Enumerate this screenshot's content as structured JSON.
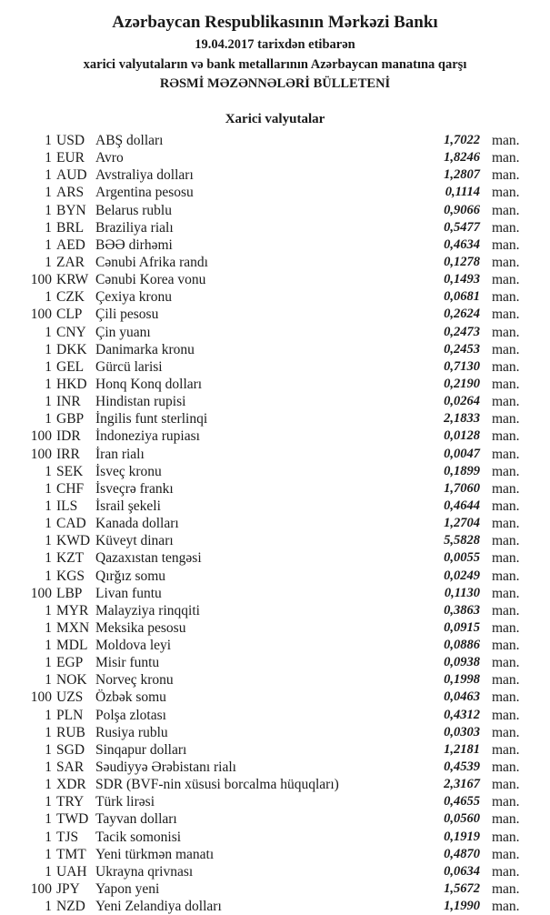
{
  "header": {
    "title": "Azərbaycan Respublikasının Mərkəzi Bankı",
    "date_line": "19.04.2017 tarixdən etibarən",
    "subtitle": "xarici valyutaların və bank metallarının Azərbaycan manatına qarşı",
    "bulletin": "RƏSMİ MƏZƏNNƏLƏRİ BÜLLETENİ"
  },
  "section": {
    "title": "Xarici valyutalar",
    "unit_label": "man.",
    "rows": [
      {
        "units": "1",
        "code": "USD",
        "name": "ABŞ dolları",
        "rate": "1,7022"
      },
      {
        "units": "1",
        "code": "EUR",
        "name": "Avro",
        "rate": "1,8246"
      },
      {
        "units": "1",
        "code": "AUD",
        "name": "Avstraliya dolları",
        "rate": "1,2807"
      },
      {
        "units": "1",
        "code": "ARS",
        "name": "Argentina pesosu",
        "rate": "0,1114"
      },
      {
        "units": "1",
        "code": "BYN",
        "name": "Belarus rublu",
        "rate": "0,9066"
      },
      {
        "units": "1",
        "code": "BRL",
        "name": "Braziliya rialı",
        "rate": "0,5477"
      },
      {
        "units": "1",
        "code": "AED",
        "name": "BƏƏ dirhəmi",
        "rate": "0,4634"
      },
      {
        "units": "1",
        "code": "ZAR",
        "name": "Cənubi Afrika randı",
        "rate": "0,1278"
      },
      {
        "units": "100",
        "code": "KRW",
        "name": "Cənubi Korea vonu",
        "rate": "0,1493"
      },
      {
        "units": "1",
        "code": "CZK",
        "name": "Çexiya kronu",
        "rate": "0,0681"
      },
      {
        "units": "100",
        "code": "CLP",
        "name": "Çili pesosu",
        "rate": "0,2624"
      },
      {
        "units": "1",
        "code": "CNY",
        "name": "Çin yuanı",
        "rate": "0,2473"
      },
      {
        "units": "1",
        "code": "DKK",
        "name": "Danimarka kronu",
        "rate": "0,2453"
      },
      {
        "units": "1",
        "code": "GEL",
        "name": "Gürcü larisi",
        "rate": "0,7130"
      },
      {
        "units": "1",
        "code": "HKD",
        "name": "Honq Konq dolları",
        "rate": "0,2190"
      },
      {
        "units": "1",
        "code": "INR",
        "name": "Hindistan rupisi",
        "rate": "0,0264"
      },
      {
        "units": "1",
        "code": "GBP",
        "name": "İngilis funt sterlinqi",
        "rate": "2,1833"
      },
      {
        "units": "100",
        "code": "IDR",
        "name": "İndoneziya rupiası",
        "rate": "0,0128"
      },
      {
        "units": "100",
        "code": "IRR",
        "name": "İran rialı",
        "rate": "0,0047"
      },
      {
        "units": "1",
        "code": "SEK",
        "name": "İsveç kronu",
        "rate": "0,1899"
      },
      {
        "units": "1",
        "code": "CHF",
        "name": "İsveçrə frankı",
        "rate": "1,7060"
      },
      {
        "units": "1",
        "code": "ILS",
        "name": "İsrail şekeli",
        "rate": "0,4644"
      },
      {
        "units": "1",
        "code": "CAD",
        "name": "Kanada dolları",
        "rate": "1,2704"
      },
      {
        "units": "1",
        "code": "KWD",
        "name": "Küveyt dinarı",
        "rate": "5,5828"
      },
      {
        "units": "1",
        "code": "KZT",
        "name": "Qazaxıstan tengəsi",
        "rate": "0,0055"
      },
      {
        "units": "1",
        "code": "KGS",
        "name": "Qırğız somu",
        "rate": "0,0249"
      },
      {
        "units": "100",
        "code": "LBP",
        "name": "Livan funtu",
        "rate": "0,1130"
      },
      {
        "units": "1",
        "code": "MYR",
        "name": "Malayziya rinqqiti",
        "rate": "0,3863"
      },
      {
        "units": "1",
        "code": "MXN",
        "name": "Meksika pesosu",
        "rate": "0,0915"
      },
      {
        "units": "1",
        "code": "MDL",
        "name": "Moldova leyi",
        "rate": "0,0886"
      },
      {
        "units": "1",
        "code": "EGP",
        "name": "Misir funtu",
        "rate": "0,0938"
      },
      {
        "units": "1",
        "code": "NOK",
        "name": "Norveç kronu",
        "rate": "0,1998"
      },
      {
        "units": "100",
        "code": "UZS",
        "name": "Özbək somu",
        "rate": "0,0463"
      },
      {
        "units": "1",
        "code": "PLN",
        "name": "Polşa zlotası",
        "rate": "0,4312"
      },
      {
        "units": "1",
        "code": "RUB",
        "name": "Rusiya rublu",
        "rate": "0,0303"
      },
      {
        "units": "1",
        "code": "SGD",
        "name": "Sinqapur dolları",
        "rate": "1,2181"
      },
      {
        "units": "1",
        "code": "SAR",
        "name": "Səudiyyə Ərəbistanı rialı",
        "rate": "0,4539"
      },
      {
        "units": "1",
        "code": "XDR",
        "name": "SDR (BVF-nin xüsusi borcalma hüquqları)",
        "rate": "2,3167"
      },
      {
        "units": "1",
        "code": "TRY",
        "name": "Türk lirəsi",
        "rate": "0,4655"
      },
      {
        "units": "1",
        "code": "TWD",
        "name": "Tayvan dolları",
        "rate": "0,0560"
      },
      {
        "units": "1",
        "code": "TJS",
        "name": "Tacik somonisi",
        "rate": "0,1919"
      },
      {
        "units": "1",
        "code": "TMT",
        "name": "Yeni türkmən manatı",
        "rate": "0,4870"
      },
      {
        "units": "1",
        "code": "UAH",
        "name": "Ukrayna qrivnası",
        "rate": "0,0634"
      },
      {
        "units": "100",
        "code": "JPY",
        "name": "Yapon yeni",
        "rate": "1,5672"
      },
      {
        "units": "1",
        "code": "NZD",
        "name": "Yeni Zelandiya dolları",
        "rate": "1,1990"
      }
    ]
  }
}
